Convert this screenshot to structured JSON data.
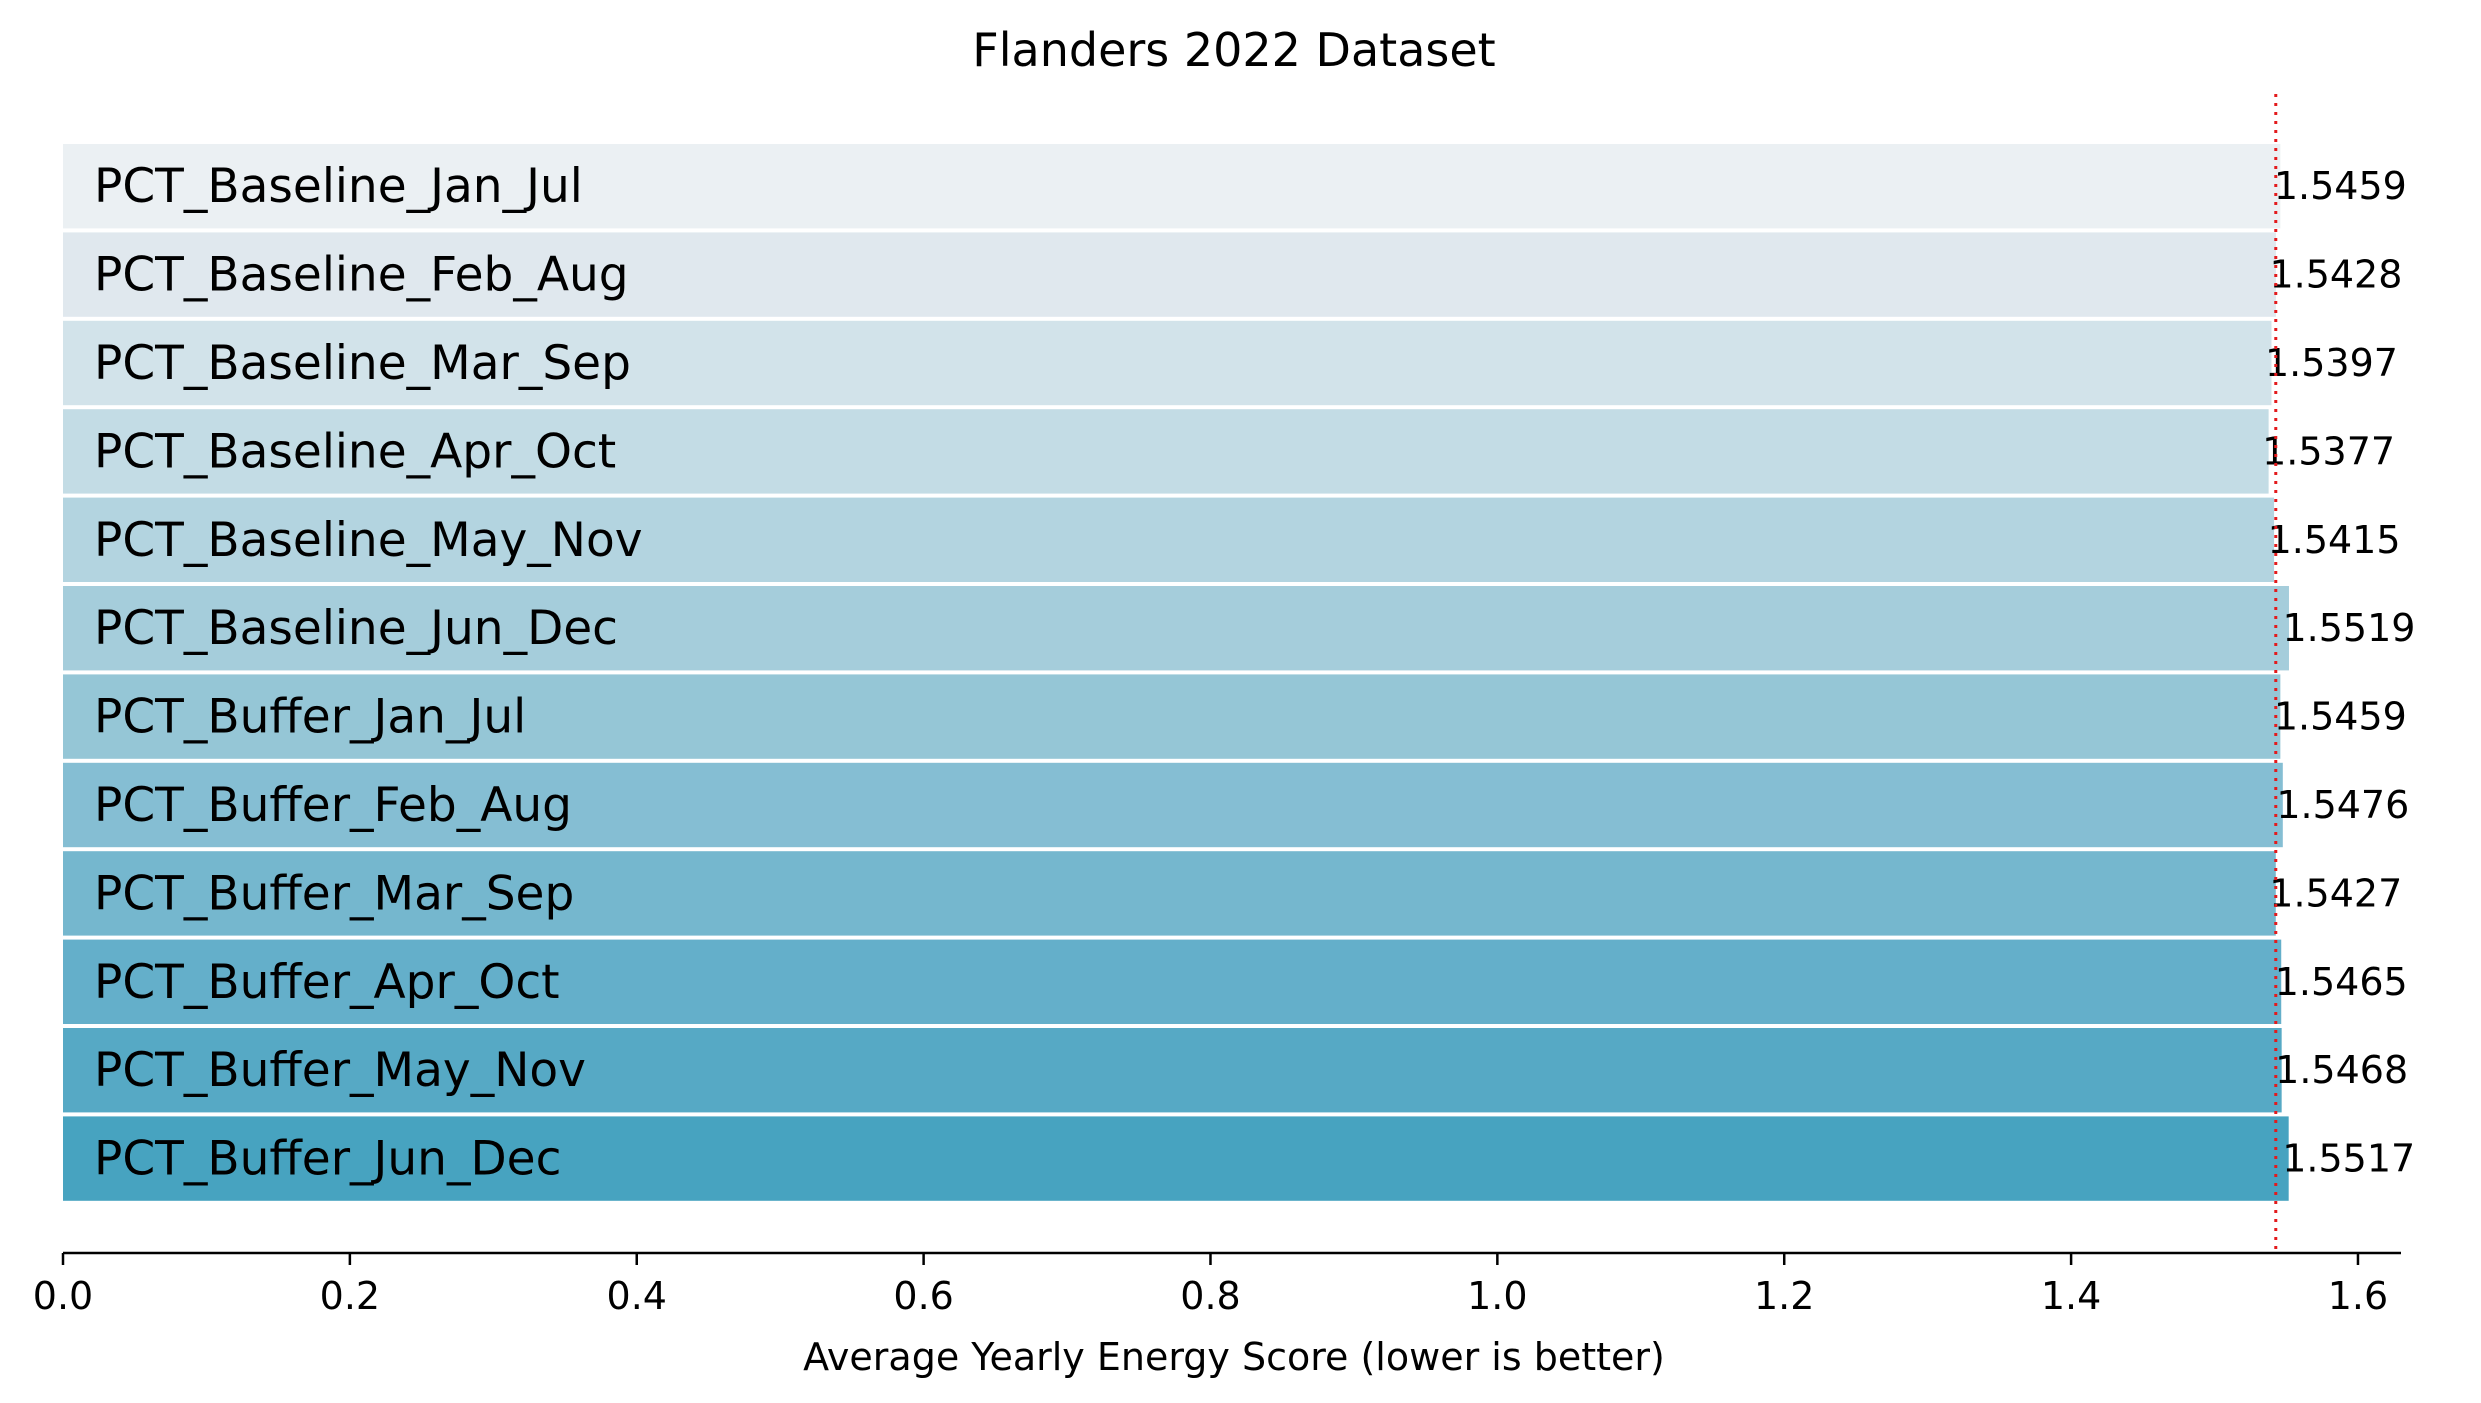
{
  "chart_data": {
    "type": "bar",
    "orientation": "horizontal",
    "title": "Flanders 2022 Dataset",
    "xlabel": "Average Yearly Energy Score (lower is better)",
    "ylabel": "",
    "xlim": [
      0.0,
      1.63
    ],
    "xticks": [
      "0.0",
      "0.2",
      "0.4",
      "0.6",
      "0.8",
      "1.0",
      "1.2",
      "1.4",
      "1.6"
    ],
    "categories": [
      "PCT_Baseline_Jan_Jul",
      "PCT_Baseline_Feb_Aug",
      "PCT_Baseline_Mar_Sep",
      "PCT_Baseline_Apr_Oct",
      "PCT_Baseline_May_Nov",
      "PCT_Baseline_Jun_Dec",
      "PCT_Buffer_Jan_Jul",
      "PCT_Buffer_Feb_Aug",
      "PCT_Buffer_Mar_Sep",
      "PCT_Buffer_Apr_Oct",
      "PCT_Buffer_May_Nov",
      "PCT_Buffer_Jun_Dec"
    ],
    "values": [
      1.5459,
      1.5428,
      1.5397,
      1.5377,
      1.5415,
      1.5519,
      1.5459,
      1.5476,
      1.5427,
      1.5465,
      1.5468,
      1.5517
    ],
    "value_labels": [
      "1.5459",
      "1.5428",
      "1.5397",
      "1.5377",
      "1.5415",
      "1.5519",
      "1.5459",
      "1.5476",
      "1.5427",
      "1.5465",
      "1.5468",
      "1.5517"
    ],
    "reference_line": {
      "x": 1.5427,
      "style": "dotted",
      "color": "#e31a1c"
    },
    "bar_colors": [
      "#ebf0f3",
      "#e0e8ee",
      "#d2e3ea",
      "#c3dce5",
      "#b3d4e0",
      "#a5cddb",
      "#95c6d6",
      "#85bed3",
      "#75b7ce",
      "#64afca",
      "#56a9c5",
      "#47a3c0"
    ],
    "grid": false,
    "legend": "none"
  }
}
